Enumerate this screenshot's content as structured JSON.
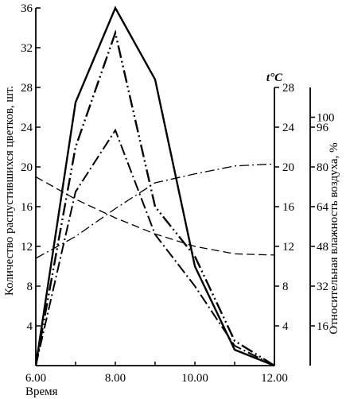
{
  "chart_data": {
    "type": "line",
    "xlabel": "Время",
    "ylabel_left": "Количество распустившихся цветков, шт.",
    "ylabel_mid": "t°C",
    "ylabel_right": "Относительная влажность воздуха, %",
    "x_ticks": [
      "6.00",
      "8.00",
      "10.00",
      "12.00"
    ],
    "x_values": [
      6,
      7,
      8,
      9,
      10,
      11,
      12
    ],
    "xlim": [
      6,
      12
    ],
    "y_left": {
      "ylim": [
        0,
        36
      ],
      "ticks": [
        "4",
        "8",
        "12",
        "16",
        "20",
        "24",
        "28",
        "32",
        "36"
      ]
    },
    "y_mid": {
      "ylim": [
        0,
        28
      ],
      "ticks": [
        "4",
        "8",
        "12",
        "16",
        "20",
        "24",
        "28"
      ]
    },
    "y_right": {
      "ylim": [
        0,
        112
      ],
      "ticks": [
        "16",
        "32",
        "48",
        "64",
        "80",
        "96",
        "100"
      ]
    },
    "grid": false,
    "series": [
      {
        "axis": "left",
        "style": "solid",
        "x": [
          6,
          7,
          8,
          9,
          10,
          11,
          12
        ],
        "values": [
          0,
          26.5,
          36,
          28.8,
          10,
          1.6,
          0
        ]
      },
      {
        "axis": "left",
        "style": "dash-dot-dot",
        "x": [
          6,
          7,
          8,
          9,
          10,
          11,
          12
        ],
        "values": [
          0,
          22,
          33.5,
          16,
          11,
          2.5,
          0
        ]
      },
      {
        "axis": "left",
        "style": "dash-dot",
        "x": [
          6,
          7,
          8,
          9,
          10,
          11,
          12
        ],
        "values": [
          0,
          17.5,
          23.7,
          13.2,
          8,
          2,
          0
        ]
      },
      {
        "axis": "mid",
        "style": "dash-dot-thin",
        "x": [
          6,
          7,
          8,
          9,
          10,
          11,
          12
        ],
        "values": [
          10.8,
          13,
          15.8,
          18.4,
          19.3,
          20.1,
          20.3
        ]
      },
      {
        "axis": "right",
        "style": "dashed",
        "x": [
          6,
          7,
          8,
          9,
          10,
          11,
          12
        ],
        "values": [
          76,
          67,
          59.5,
          53,
          48,
          45,
          44.5
        ]
      }
    ]
  }
}
